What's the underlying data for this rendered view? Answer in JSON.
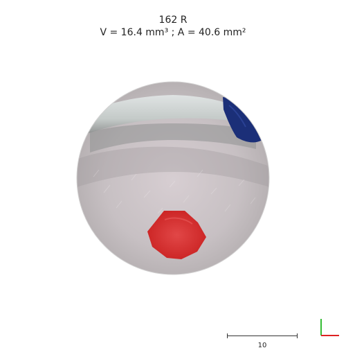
{
  "header": {
    "title": "162 R",
    "subtitle": "V = 16.4 mm³ ; A = 40.6 mm²"
  },
  "scale_bar": {
    "label": "10"
  },
  "colors": {
    "background": "#ffffff",
    "lesion": "#d82a2a",
    "dark_object": "#1b2f78",
    "axis_vertical": "#33bb33",
    "axis_horizontal": "#dd2222"
  },
  "image": {
    "description_elements": [
      "skin-view-circle",
      "red-lesion-overlay",
      "dark-blue-object"
    ]
  }
}
